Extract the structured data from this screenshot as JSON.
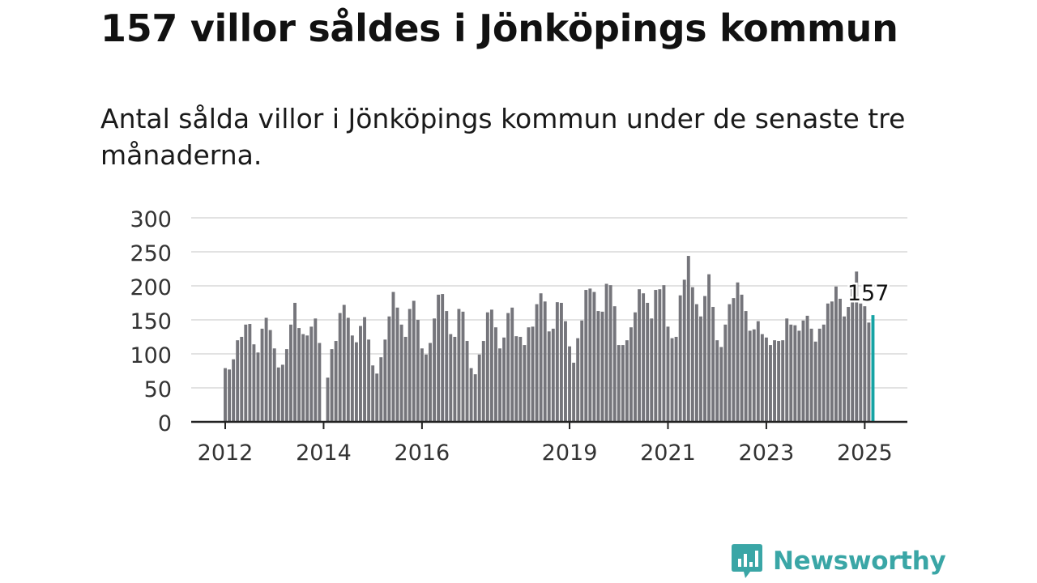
{
  "title": "157 villor såldes i Jönköpings kommun",
  "subtitle": "Antal sålda villor i Jönköpings kommun under de senaste tre månaderna.",
  "brand": {
    "name": "Newsworthy",
    "color": "#3aa6a6",
    "icon": "newsworthy-logo-icon"
  },
  "chart_data": {
    "type": "bar",
    "title": "157 villor såldes i Jönköpings kommun",
    "xlabel": "",
    "ylabel": "",
    "ylim": [
      0,
      300
    ],
    "yticks": [
      0,
      50,
      100,
      150,
      200,
      250,
      300
    ],
    "xtick_labels": [
      "2012",
      "2014",
      "2016",
      "2019",
      "2021",
      "2023",
      "2025"
    ],
    "start_month": "2012-01",
    "end_month": "2025-02",
    "grid": true,
    "bar_color": "#75757b",
    "highlight_color": "#16a3a4",
    "annotation": {
      "month": "2025-02",
      "text": "157"
    },
    "values": [
      79,
      77,
      92,
      120,
      125,
      143,
      144,
      114,
      102,
      137,
      153,
      135,
      108,
      80,
      84,
      107,
      143,
      175,
      138,
      129,
      127,
      140,
      152,
      116,
      0,
      65,
      107,
      119,
      160,
      172,
      153,
      127,
      117,
      141,
      154,
      121,
      83,
      71,
      95,
      121,
      155,
      191,
      168,
      143,
      125,
      166,
      178,
      150,
      108,
      99,
      116,
      152,
      187,
      188,
      163,
      129,
      125,
      166,
      162,
      119,
      79,
      70,
      99,
      119,
      161,
      165,
      139,
      108,
      124,
      160,
      168,
      126,
      125,
      113,
      139,
      140,
      173,
      189,
      177,
      133,
      137,
      176,
      175,
      148,
      111,
      87,
      123,
      149,
      194,
      196,
      191,
      163,
      162,
      203,
      201,
      170,
      113,
      113,
      120,
      139,
      161,
      195,
      189,
      175,
      152,
      194,
      195,
      201,
      140,
      123,
      125,
      186,
      209,
      244,
      198,
      173,
      155,
      185,
      217,
      169,
      120,
      110,
      143,
      173,
      182,
      205,
      187,
      163,
      134,
      136,
      148,
      129,
      124,
      113,
      120,
      119,
      120,
      152,
      143,
      142,
      134,
      149,
      156,
      137,
      118,
      137,
      143,
      174,
      177,
      199,
      181,
      155,
      169,
      198,
      221,
      174,
      170,
      146,
      157
    ]
  }
}
